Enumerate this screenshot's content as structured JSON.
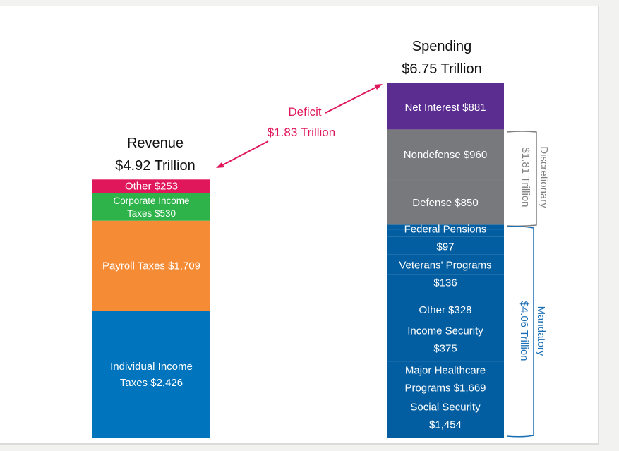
{
  "chart_data": {
    "type": "bar",
    "subtype": "stacked",
    "units": "billions of dollars",
    "colors": {
      "other_revenue": "#e0175a",
      "corporate": "#2db34a",
      "payroll": "#f58b35",
      "individual": "#0074bd",
      "net_interest": "#5b2d91",
      "discretionary": "#77797c",
      "mandatory": "#025ea1",
      "deficit": "#e0175a",
      "discretionary_brace": "#7f7f7f",
      "mandatory_brace": "#1a6fb5"
    },
    "revenue": {
      "title_line1": "Revenue",
      "title_line2": "$4.92 Trillion",
      "total": 4918,
      "segments": [
        {
          "name": "Individual Income Taxes",
          "value": 2426,
          "color_key": "individual",
          "label_lines": [
            "Individual Income",
            "Taxes $2,426"
          ]
        },
        {
          "name": "Payroll Taxes",
          "value": 1709,
          "color_key": "payroll",
          "label_lines": [
            "Payroll Taxes $1,709"
          ]
        },
        {
          "name": "Corporate Income Taxes",
          "value": 530,
          "color_key": "corporate",
          "label_lines": [
            "Corporate Income",
            "Taxes $530"
          ]
        },
        {
          "name": "Other",
          "value": 253,
          "color_key": "other_revenue",
          "label_lines": [
            "Other $253"
          ]
        }
      ]
    },
    "spending": {
      "title_line1": "Spending",
      "title_line2": "$6.75 Trillion",
      "total": 6746,
      "segments": [
        {
          "name": "Social Security",
          "value": 1454,
          "group": "mandatory",
          "label_lines": [
            "Social Security",
            "$1,454"
          ]
        },
        {
          "name": "Major Healthcare Programs",
          "value": 1669,
          "group": "mandatory",
          "label_lines": [
            "Major Healthcare",
            "Programs $1,669"
          ]
        },
        {
          "name": "Income Security",
          "value": 375,
          "group": "mandatory",
          "label_lines": [
            "Income Security",
            "$375"
          ]
        },
        {
          "name": "Other",
          "value": 328,
          "group": "mandatory",
          "label_lines": [
            "Other $328"
          ]
        },
        {
          "name": "Veterans' Programs",
          "value": 136,
          "group": "mandatory",
          "label_lines": [
            "Veterans' Programs",
            "$136"
          ]
        },
        {
          "name": "Federal Pensions",
          "value": 97,
          "group": "mandatory",
          "label_lines": [
            "Federal Pensions",
            "$97"
          ]
        },
        {
          "name": "Defense",
          "value": 850,
          "group": "discretionary",
          "label_lines": [
            "Defense $850"
          ]
        },
        {
          "name": "Nondefense",
          "value": 960,
          "group": "discretionary",
          "label_lines": [
            "Nondefense $960"
          ]
        },
        {
          "name": "Net Interest",
          "value": 881,
          "group": "net_interest",
          "label_lines": [
            "Net Interest $881"
          ]
        }
      ],
      "groups": [
        {
          "key": "discretionary",
          "label_line1": "Discretionary",
          "label_line2": "$1.81 Trillion",
          "total": 1810
        },
        {
          "key": "mandatory",
          "label_line1": "Mandatory",
          "label_line2": "$4.06 Trillion",
          "total": 4060
        }
      ]
    },
    "deficit": {
      "label_line1": "Deficit",
      "label_line2": "$1.83 Trillion",
      "value": 1830
    }
  }
}
